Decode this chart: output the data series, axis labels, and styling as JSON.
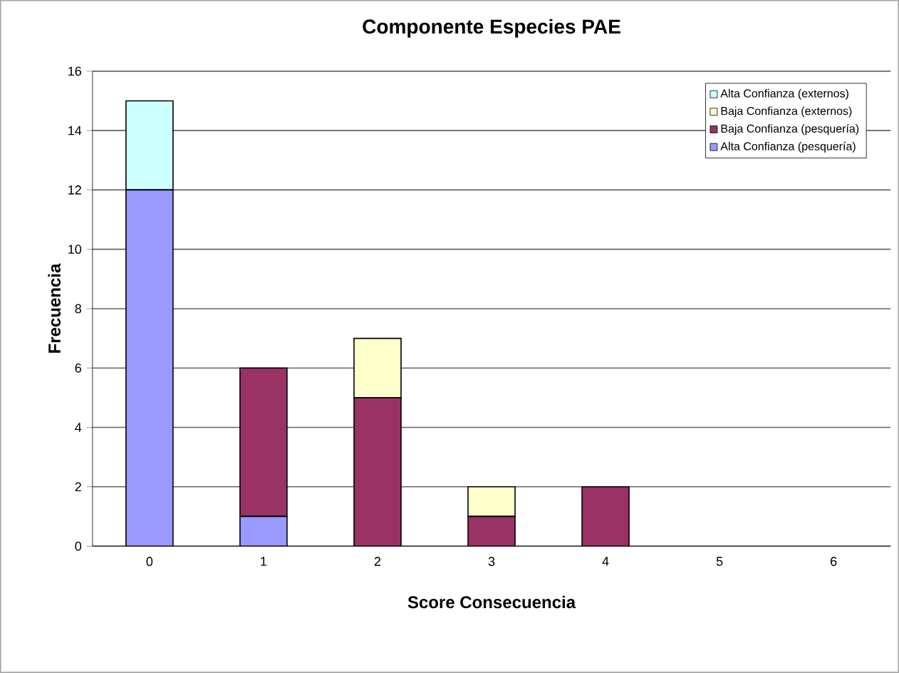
{
  "chart_data": {
    "type": "bar",
    "title": "Componente  Especies PAE",
    "xlabel": "Score Consecuencia",
    "ylabel": "Frecuencia",
    "categories": [
      "0",
      "1",
      "2",
      "3",
      "4",
      "5",
      "6"
    ],
    "stacked": true,
    "series": [
      {
        "name": "Alta Confianza (pesquería)",
        "color": "#9999ff",
        "values": [
          12,
          1,
          0,
          0,
          0,
          0,
          0
        ]
      },
      {
        "name": "Baja Confianza (pesquería)",
        "color": "#993366",
        "values": [
          0,
          5,
          5,
          1,
          2,
          0,
          0
        ]
      },
      {
        "name": "Baja Confianza (externos)",
        "color": "#ffffcc",
        "values": [
          0,
          0,
          2,
          1,
          0,
          0,
          0
        ]
      },
      {
        "name": "Alta Confianza (externos)",
        "color": "#ccffff",
        "values": [
          3,
          0,
          0,
          0,
          0,
          0,
          0
        ]
      }
    ],
    "ylim": [
      0,
      16
    ],
    "yticks": [
      0,
      2,
      4,
      6,
      8,
      10,
      12,
      14,
      16
    ],
    "grid": "y",
    "legend": "top right"
  }
}
